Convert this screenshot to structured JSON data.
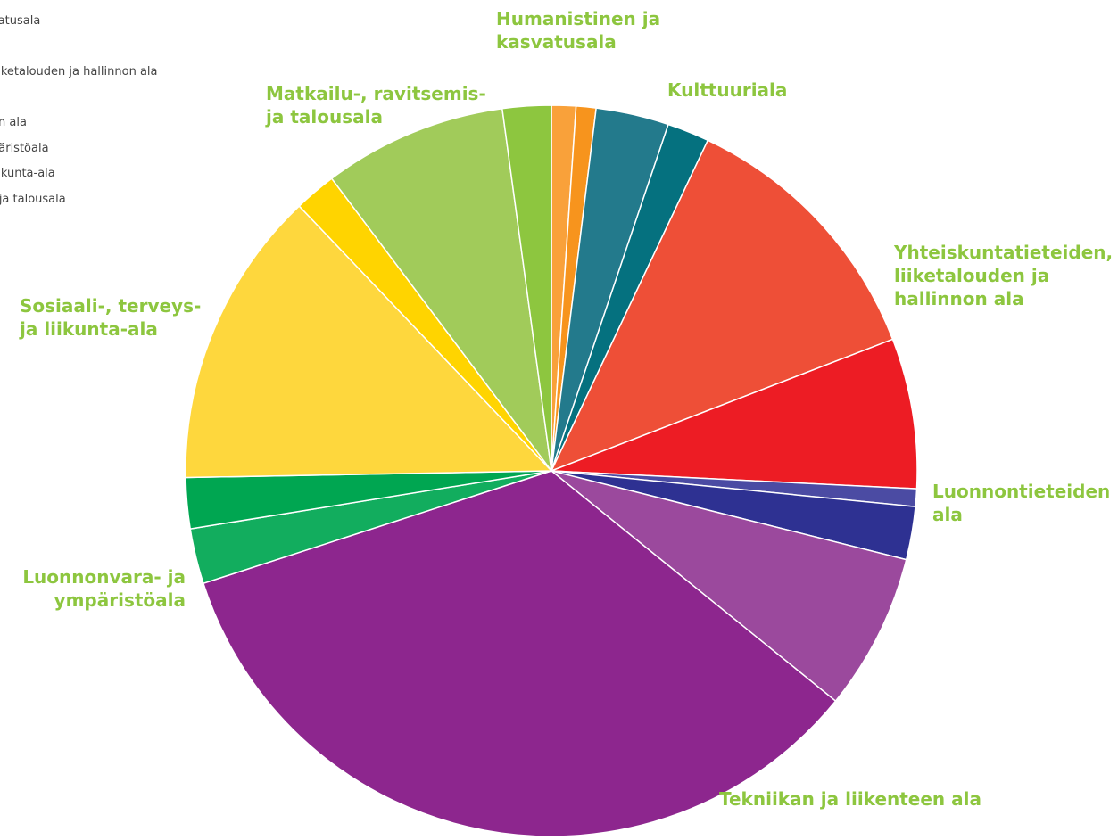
{
  "chart_data": {
    "type": "pie",
    "title": "",
    "legend": {
      "placement": "top-left",
      "entries": [
        "vatusala",
        "",
        " liiketalouden ja hallinnon ala",
        "a",
        "en ala",
        "päristöala",
        " liikunta-ala",
        "- ja talousala"
      ]
    },
    "label_color": "#8dc63f",
    "categories": [
      {
        "lines": [
          "Humanistinen ja",
          "kasvatusala"
        ],
        "total": 2.0,
        "slices": [
          {
            "value": 1.1,
            "color": "#f9a13a"
          },
          {
            "value": 0.9,
            "color": "#f7941d"
          }
        ]
      },
      {
        "lines": [
          "Kulttuuriala"
        ],
        "total": 5.2,
        "slices": [
          {
            "value": 3.3,
            "color": "#237a8c"
          },
          {
            "value": 1.9,
            "color": "#05717f"
          }
        ]
      },
      {
        "lines": [
          "Yhteiskuntatieteiden,",
          "liiketalouden ja",
          "hallinnon ala"
        ],
        "total": 19.2,
        "slices": [
          {
            "value": 12.4,
            "color": "#ee4f37"
          },
          {
            "value": 6.8,
            "color": "#ed1c24"
          }
        ]
      },
      {
        "lines": [
          "Luonnontieteiden",
          "ala"
        ],
        "total": 3.2,
        "slices": [
          {
            "value": 0.8,
            "color": "#4b4ba3"
          },
          {
            "value": 2.4,
            "color": "#2e3192"
          }
        ]
      },
      {
        "lines": [
          "Tekniikan ja liikenteen ala"
        ],
        "total": 42.1,
        "slices": [
          {
            "value": 7.1,
            "color": "#9b499d"
          },
          {
            "value": 35.0,
            "color": "#8d268e"
          }
        ]
      },
      {
        "lines": [
          "Luonnonvara- ja",
          "ympäristöala"
        ],
        "total": 4.8,
        "slices": [
          {
            "value": 2.5,
            "color": "#12ad5e"
          },
          {
            "value": 2.3,
            "color": "#00a651"
          }
        ]
      },
      {
        "lines": [
          "Sosiaali-, terveys-",
          "ja liikunta-ala"
        ],
        "total": 15.4,
        "slices": [
          {
            "value": 13.5,
            "color": "#fed73d"
          },
          {
            "value": 1.9,
            "color": "#ffd400"
          }
        ]
      },
      {
        "lines": [
          "Matkailu-, ravitsemis-",
          "ja talousala"
        ],
        "total": 10.5,
        "slices": [
          {
            "value": 8.3,
            "color": "#a1cb5a"
          },
          {
            "value": 2.2,
            "color": "#8dc63f"
          }
        ]
      }
    ]
  }
}
